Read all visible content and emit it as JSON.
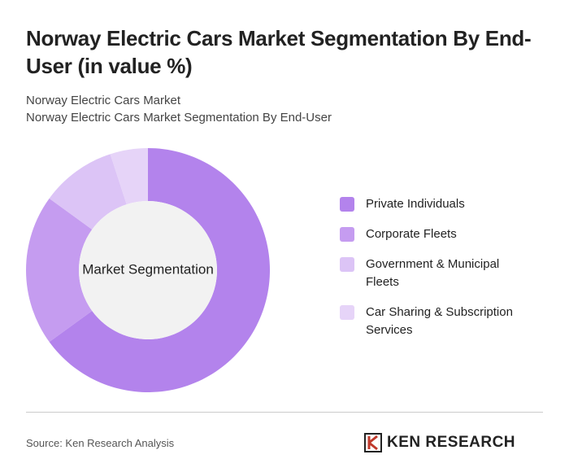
{
  "chart_data": {
    "type": "donut",
    "title": "Norway Electric Cars Market Segmentation By End-User (in value %)",
    "subtitle_lines": [
      "Norway Electric Cars Market",
      "Norway Electric Cars Market Segmentation By End-User"
    ],
    "center_label": "Market Segmentation",
    "categories": [
      "Private Individuals",
      "Corporate Fleets",
      "Government & Municipal Fleets",
      "Car Sharing & Subscription Services"
    ],
    "values": [
      65,
      20,
      10,
      5
    ],
    "colors": [
      "#b383ec",
      "#c59cf0",
      "#dcc4f6",
      "#e6d4f8"
    ],
    "source": "Source: Ken Research Analysis",
    "brand": "KEN RESEARCH"
  }
}
